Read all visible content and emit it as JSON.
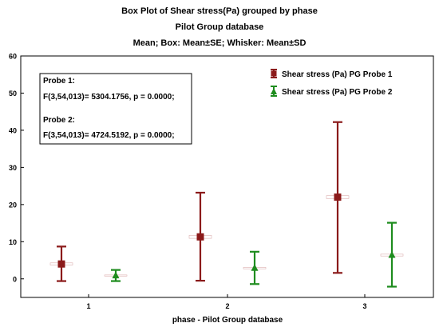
{
  "chart_data": {
    "type": "box",
    "title": "Box Plot of Shear stress(Pa) grouped by  phase",
    "subtitle": "Pilot Group database",
    "subtitle2": "Mean; Box: Mean±SE; Whisker: Mean±SD",
    "xlabel": "phase - Pilot Group database",
    "categories": [
      "1",
      "2",
      "3"
    ],
    "ylim": [
      -5,
      60
    ],
    "yticks": [
      "0",
      "10",
      "20",
      "30",
      "40",
      "50",
      "60"
    ],
    "series": [
      {
        "name": "Shear stress (Pa) PG Probe 1",
        "color": "#8b1a1a",
        "marker": "square",
        "mean": [
          4.0,
          11.3,
          22.0
        ],
        "se": [
          0.3,
          0.4,
          0.4
        ],
        "sd_low": [
          -0.6,
          -0.5,
          1.6
        ],
        "sd_high": [
          8.7,
          23.2,
          42.2
        ]
      },
      {
        "name": "Shear stress (Pa) PG Probe 2",
        "color": "#1e8c1e",
        "marker": "triangle",
        "mean": [
          0.9,
          2.9,
          6.4
        ],
        "se": [
          0.15,
          0.2,
          0.25
        ],
        "sd_low": [
          -0.6,
          -1.4,
          -2.1
        ],
        "sd_high": [
          2.4,
          7.3,
          15.1
        ]
      }
    ],
    "annotation": {
      "line1": "Probe 1:",
      "line2": "F(3,54,013)= 5304.1756, p = 0.0000;",
      "line3": "Probe 2:",
      "line4": "F(3,54,013)= 4724.5192, p = 0.0000;"
    },
    "legend_position": "top-right",
    "grid": false
  }
}
